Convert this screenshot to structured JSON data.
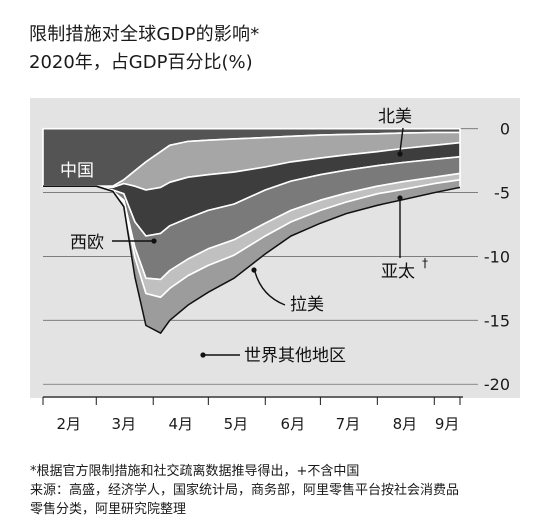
{
  "header": {
    "title": "限制措施对全球GDP的影响*",
    "subtitle": "2020年，占GDP百分比(%)"
  },
  "footnotes": {
    "note": "*根据官方限制措施和社交疏离数据推导得出，+不含中国",
    "source_line1": "来源：高盛，经济学人，国家统计局，商务部，阿里零售平台按社会消费品",
    "source_line2": "零售分类，阿里研究院整理"
  },
  "chart_data": {
    "type": "area",
    "stacked": true,
    "x_tick_labels": [
      "2月",
      "3月",
      "4月",
      "5月",
      "6月",
      "7月",
      "8月",
      "9月"
    ],
    "y_ticks": [
      0,
      -5,
      -10,
      -15,
      -20
    ],
    "ylim": [
      -21,
      1.5
    ],
    "x_dates": [
      "2020-02-01",
      "2020-02-20",
      "2020-03-01",
      "2020-03-10",
      "2020-03-16",
      "2020-03-22",
      "2020-03-28",
      "2020-04-05",
      "2020-04-10",
      "2020-04-20",
      "2020-05-01",
      "2020-05-15",
      "2020-06-01",
      "2020-06-15",
      "2020-07-01",
      "2020-07-15",
      "2020-08-01",
      "2020-08-15",
      "2020-09-01",
      "2020-09-15"
    ],
    "series": [
      {
        "name": "中国",
        "values": [
          -4.5,
          -4.5,
          -4.5,
          -4.5,
          -4.0,
          -3.3,
          -2.6,
          -1.8,
          -1.3,
          -1.0,
          -0.9,
          -0.8,
          -0.7,
          -0.6,
          -0.5,
          -0.45,
          -0.4,
          -0.35,
          -0.3,
          -0.3
        ]
      },
      {
        "name": "北美",
        "values": [
          0,
          0,
          0,
          -0.1,
          -0.3,
          -1.2,
          -2.2,
          -2.8,
          -2.9,
          -2.8,
          -2.7,
          -2.6,
          -2.3,
          -2.0,
          -1.8,
          -1.6,
          -1.4,
          -1.2,
          -1.0,
          -0.8
        ]
      },
      {
        "name": "西欧",
        "values": [
          0,
          0,
          0,
          -0.2,
          -0.8,
          -2.8,
          -3.6,
          -3.6,
          -3.4,
          -3.2,
          -2.8,
          -2.5,
          -1.8,
          -1.5,
          -1.3,
          -1.2,
          -1.1,
          -1.1,
          -1.1,
          -1.1
        ]
      },
      {
        "name": "亚太",
        "values": [
          0,
          0,
          0,
          -0.1,
          -0.5,
          -2.0,
          -3.3,
          -3.6,
          -3.5,
          -3.2,
          -3.0,
          -2.8,
          -2.6,
          -2.3,
          -2.0,
          -1.8,
          -1.6,
          -1.5,
          -1.4,
          -1.3
        ]
      },
      {
        "name": "拉美",
        "values": [
          0,
          0,
          0,
          0,
          -0.2,
          -0.8,
          -1.2,
          -1.4,
          -1.4,
          -1.3,
          -1.3,
          -1.2,
          -1.0,
          -0.9,
          -0.8,
          -0.7,
          -0.6,
          -0.6,
          -0.5,
          -0.5
        ]
      },
      {
        "name": "世界其他地区",
        "values": [
          0,
          0,
          0,
          0,
          -0.3,
          -1.5,
          -2.5,
          -2.8,
          -2.5,
          -2.3,
          -2.1,
          -1.8,
          -1.4,
          -1.1,
          -1.0,
          -0.9,
          -0.9,
          -0.8,
          -0.7,
          -0.6
        ]
      }
    ],
    "colors": {
      "中国": "#545454",
      "北美": "#a6a6a6",
      "西欧": "#3d3d3d",
      "亚太": "#7a7a7a",
      "拉美": "#c0c0c0",
      "世界其他地区": "#9c9c9c",
      "panel": "#e3e3e3"
    },
    "labels": {
      "中国": "中国",
      "北美": "北美",
      "西欧": "西欧",
      "亚太": "亚太",
      "亚太_mark": "†",
      "拉美": "拉美",
      "世界其他地区": "世界其他地区"
    },
    "y_tick_labels": [
      "0",
      "-5",
      "-10",
      "-15",
      "-20"
    ]
  }
}
